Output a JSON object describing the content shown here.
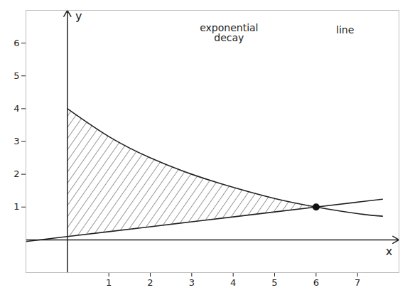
{
  "chart_data": {
    "type": "line",
    "annotations": [
      {
        "text": "exponential decay",
        "x": 3.9,
        "y": 6.3
      },
      {
        "text": "line",
        "x": 6.7,
        "y": 6.4
      }
    ],
    "x_label": "x",
    "y_label": "y",
    "x": [
      -1,
      0,
      1,
      2,
      3,
      4,
      5,
      6,
      7,
      7.6
    ],
    "series": [
      {
        "name": "exponential decay",
        "color": "#222222",
        "values": [
          null,
          4,
          3.15,
          2.5,
          2.0,
          1.6,
          1.26,
          1.0,
          0.8,
          0.72
        ]
      },
      {
        "name": "line",
        "color": "#222222",
        "values": [
          -0.05,
          0.1,
          0.25,
          0.4,
          0.55,
          0.7,
          0.85,
          1.0,
          1.15,
          1.24
        ]
      }
    ],
    "shaded_between": [
      0,
      6
    ],
    "points": [
      {
        "x": 6,
        "y": 1
      }
    ],
    "xlim": [
      -1,
      8
    ],
    "ylim": [
      -1,
      7
    ],
    "xticks": [
      1,
      2,
      3,
      4,
      5,
      6,
      7
    ],
    "yticks": [
      1,
      2,
      3,
      4,
      5,
      6
    ],
    "grid": false
  }
}
